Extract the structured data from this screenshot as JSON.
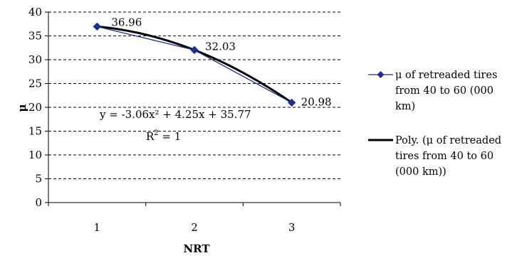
{
  "chart_data": {
    "type": "line",
    "xlabel": "NRT",
    "ylabel": "μ",
    "categories": [
      "1",
      "2",
      "3"
    ],
    "x": [
      1,
      2,
      3
    ],
    "xlim": [
      0.5,
      3.5
    ],
    "ylim": [
      0,
      40
    ],
    "yticks": [
      "0",
      "5",
      "10",
      "15",
      "20",
      "25",
      "30",
      "35",
      "40"
    ],
    "grid": "horizontal dashed",
    "legend_position": "right",
    "series": [
      {
        "name": "μ of retreaded tires from 40 to 60 (000 km)",
        "values": [
          36.96,
          32.03,
          20.98
        ],
        "color": "#1f2f8f",
        "marker": "diamond"
      }
    ],
    "trendline": {
      "name": "Poly. (μ of retreaded tires from 40 to 60 (000 km))",
      "type": "polynomial",
      "coefficients": {
        "a": -3.06,
        "b": 4.25,
        "c": 35.77
      },
      "color": "#000000"
    },
    "data_labels": [
      "36.96",
      "32.03",
      "20.98"
    ],
    "annotations": {
      "equation": "y = -3.06x² + 4.25x + 35.77",
      "r2_prefix": "R",
      "r2_sup": "2",
      "r2_suffix": " = 1"
    },
    "legend": [
      {
        "lines": [
          "μ of retreaded tires",
          "from 40 to 60 (000",
          "km)"
        ]
      },
      {
        "lines": [
          "Poly. (μ of retreaded",
          "tires from 40 to 60",
          "(000 km))"
        ]
      }
    ]
  }
}
